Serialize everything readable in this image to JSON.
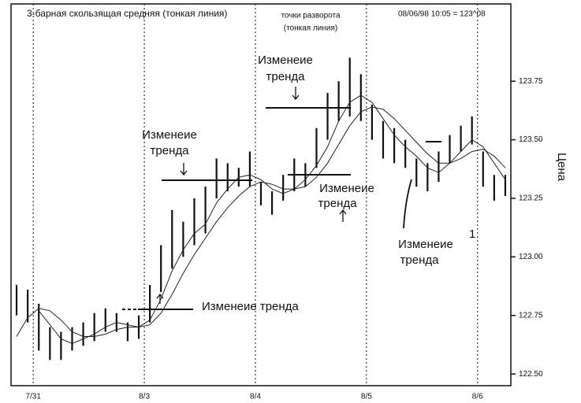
{
  "chart_data": {
    "type": "range-bar",
    "title": "3-барная скользящая средняя (тонкая линия)",
    "header": "08/06/98 10:05 = 123^08",
    "y_label": "Цена",
    "annotations": [
      {
        "lines": [
          "точки разворота",
          "(тонкая линия)"
        ]
      },
      {
        "lines": [
          "Изменеие",
          "тренда"
        ]
      },
      {
        "lines": [
          "Изменеие",
          "тренда"
        ]
      },
      {
        "lines": [
          "Изменеие",
          "тренда"
        ]
      },
      {
        "lines": [
          "Изменеие",
          "тренда"
        ]
      },
      {
        "lines": [
          "Изменеие тренда"
        ]
      },
      {
        "lines": [
          "1"
        ]
      }
    ],
    "categories": [
      null,
      null,
      "7/31",
      null,
      null,
      null,
      null,
      null,
      null,
      null,
      null,
      null,
      "8/3",
      null,
      null,
      null,
      null,
      null,
      null,
      null,
      null,
      null,
      "8/4",
      null,
      null,
      null,
      null,
      null,
      null,
      null,
      null,
      null,
      "8/5",
      null,
      null,
      null,
      null,
      null,
      null,
      null,
      null,
      null,
      "8/6",
      null,
      null
    ],
    "low": [
      122.75,
      122.72,
      122.6,
      122.56,
      122.56,
      122.6,
      122.62,
      122.64,
      122.68,
      122.68,
      122.64,
      122.65,
      122.72,
      122.85,
      122.95,
      123.0,
      123.05,
      123.1,
      123.25,
      123.28,
      123.3,
      123.3,
      123.22,
      123.18,
      123.24,
      123.28,
      123.3,
      123.38,
      123.5,
      123.58,
      123.6,
      123.58,
      123.5,
      123.42,
      123.4,
      123.38,
      123.3,
      123.28,
      123.32,
      123.4,
      123.45,
      123.48,
      123.3,
      123.24,
      123.26
    ],
    "high": [
      122.88,
      122.86,
      122.8,
      122.7,
      122.68,
      122.7,
      122.72,
      122.76,
      122.78,
      122.76,
      122.72,
      122.75,
      122.88,
      123.05,
      123.2,
      123.15,
      123.25,
      123.3,
      123.42,
      123.4,
      123.38,
      123.45,
      123.32,
      123.28,
      123.35,
      123.42,
      123.4,
      123.55,
      123.7,
      123.75,
      123.85,
      123.78,
      123.65,
      123.58,
      123.55,
      123.5,
      123.42,
      123.4,
      123.45,
      123.52,
      123.56,
      123.6,
      123.45,
      123.35,
      123.35
    ],
    "color": "#111111",
    "lines": [
      {
        "color": "#222222",
        "values": [
          null,
          null,
          122.77,
          122.71,
          122.65,
          122.63,
          122.65,
          122.67,
          122.7,
          122.72,
          122.71,
          122.7,
          122.73,
          122.82,
          122.94,
          123.03,
          123.1,
          123.14,
          123.23,
          123.29,
          123.34,
          123.35,
          123.33,
          123.29,
          123.27,
          123.29,
          123.33,
          123.39,
          123.47,
          123.58,
          123.66,
          123.69,
          123.66,
          123.59,
          123.52,
          123.47,
          123.43,
          123.38,
          123.36,
          123.4,
          123.45,
          123.5,
          123.47,
          123.4,
          123.33
        ]
      },
      {
        "color": "#222222",
        "values": [
          122.66,
          122.74,
          122.78,
          122.77,
          122.73,
          122.68,
          122.66,
          122.66,
          122.67,
          122.69,
          122.7,
          122.7,
          122.71,
          122.76,
          122.84,
          122.93,
          123.01,
          123.08,
          123.15,
          123.21,
          123.26,
          123.3,
          123.32,
          123.31,
          123.29,
          123.29,
          123.3,
          123.34,
          123.4,
          123.48,
          123.56,
          123.62,
          123.64,
          123.63,
          123.59,
          123.54,
          123.49,
          123.44,
          123.4,
          123.4,
          123.42,
          123.45,
          123.46,
          123.43,
          123.38
        ]
      }
    ],
    "ylim": [
      122.45,
      124.08
    ],
    "yticks": [
      {
        "value": 122.5,
        "label": "122.50"
      },
      {
        "value": 122.75,
        "label": "122.75"
      },
      {
        "value": 123,
        "label": "123.00"
      },
      {
        "value": 123.25,
        "label": "123.25"
      },
      {
        "value": 123.5,
        "label": "123.50"
      },
      {
        "value": 123.75,
        "label": "123.75"
      }
    ]
  }
}
